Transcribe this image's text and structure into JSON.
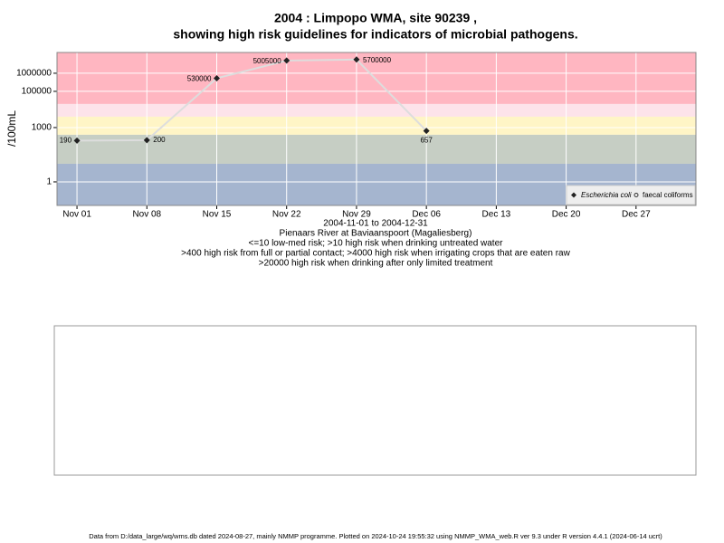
{
  "chart_data": {
    "type": "line",
    "title": [
      "2004 : Limpopo WMA, site 90239 ,",
      "showing high risk guidelines for indicators of microbial pathogens."
    ],
    "y_label": "/100mL",
    "log_y": true,
    "grid": true,
    "ylim": [
      0.05,
      14000000
    ],
    "yticks": [
      1,
      1000,
      100000,
      1000000
    ],
    "xlim": [
      "2004-10-30",
      "2005-01-02"
    ],
    "xticks": [
      {
        "value": "2004-11-01",
        "label": "Nov 01"
      },
      {
        "value": "2004-11-08",
        "label": "Nov 08"
      },
      {
        "value": "2004-11-15",
        "label": "Nov 15"
      },
      {
        "value": "2004-11-22",
        "label": "Nov 22"
      },
      {
        "value": "2004-11-29",
        "label": "Nov 29"
      },
      {
        "value": "2004-12-06",
        "label": "Dec 06"
      },
      {
        "value": "2004-12-13",
        "label": "Dec 13"
      },
      {
        "value": "2004-12-20",
        "label": "Dec 20"
      },
      {
        "value": "2004-12-27",
        "label": "Dec 27"
      }
    ],
    "bands": [
      {
        "from": 20000,
        "to": 14000000,
        "color": "#ffb6c1"
      },
      {
        "from": 4000,
        "to": 20000,
        "color": "#fde3ea"
      },
      {
        "from": 400,
        "to": 4000,
        "color": "#fff5c6"
      },
      {
        "from": 10,
        "to": 400,
        "color": "#c6cec4"
      },
      {
        "from": 0.05,
        "to": 10,
        "color": "#a5b5cf"
      }
    ],
    "x": [
      "2004-11-01",
      "2004-11-08",
      "2004-11-15",
      "2004-11-22",
      "2004-11-29",
      "2004-12-06"
    ],
    "series": [
      {
        "name": "Escherichia coli",
        "color": "#222222",
        "line_color": "#dddddd",
        "values": [
          190,
          200,
          530000,
          5005000,
          5700000,
          657
        ]
      }
    ],
    "legend_extra": [
      "faecal coliforms"
    ],
    "subtitle_lines": [
      "2004-11-01 to 2004-12-31",
      "Pienaars River at Baviaanspoort (Magaliesberg)",
      "<=10 low-med risk; >10 high risk when drinking untreated water",
      ">400 high risk from full or partial contact; >4000 high risk when irrigating crops that are eaten raw",
      ">20000 high risk when drinking after only limited treatment"
    ],
    "footer": "Data from D:/data_large/wq/wms.db dated 2024-08-27, mainly NMMP programme. Plotted on 2024-10-24 19:55:32 using NMMP_WMA_web.R ver 9.3 under R version 4.4.1 (2024-06-14 ucrt)"
  }
}
